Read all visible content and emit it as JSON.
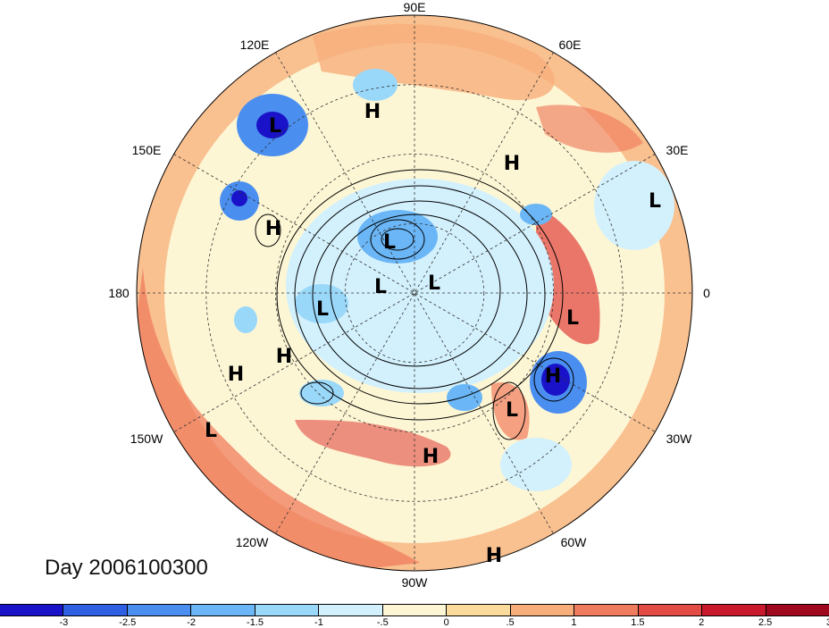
{
  "map": {
    "projection": "north-polar-stereographic",
    "longitude_labels": {
      "lon_90E": "90E",
      "lon_60E": "60E",
      "lon_30E": "30E",
      "lon_0": "0",
      "lon_30W": "30W",
      "lon_60W": "60W",
      "lon_90W": "90W",
      "lon_120W": "120W",
      "lon_150W": "150W",
      "lon_180": "180",
      "lon_150E": "150E",
      "lon_120E": "120E"
    },
    "pressure_centers": [
      {
        "id": "p1",
        "label": "L",
        "lon": 125,
        "kind": "low"
      },
      {
        "id": "p2",
        "label": "H",
        "lon": 100,
        "kind": "high"
      },
      {
        "id": "p3",
        "label": "H",
        "lon": 45,
        "kind": "high"
      },
      {
        "id": "p4",
        "label": "L",
        "lon": 20,
        "kind": "low"
      },
      {
        "id": "p5",
        "label": "L",
        "lon": 142,
        "kind": "low"
      },
      {
        "id": "p6",
        "label": "H",
        "lon": 160,
        "kind": "high"
      },
      {
        "id": "p7",
        "label": "L",
        "lon": 110,
        "kind": "low"
      },
      {
        "id": "p8",
        "label": "L",
        "lon": 120,
        "kind": "low"
      },
      {
        "id": "p9",
        "label": "L",
        "lon": 60,
        "kind": "low"
      },
      {
        "id": "p10",
        "label": "L",
        "lon": 180,
        "kind": "low"
      },
      {
        "id": "p11",
        "label": "H",
        "lon": -10,
        "kind": "high"
      },
      {
        "id": "p12",
        "label": "H",
        "lon": -140,
        "kind": "high"
      },
      {
        "id": "p13",
        "label": "H",
        "lon": -150,
        "kind": "high"
      },
      {
        "id": "p14",
        "label": "L",
        "lon": -155,
        "kind": "low"
      },
      {
        "id": "p15",
        "label": "L",
        "lon": -30,
        "kind": "low"
      },
      {
        "id": "p16",
        "label": "H",
        "lon": -45,
        "kind": "high"
      },
      {
        "id": "p17",
        "label": "H",
        "lon": -80,
        "kind": "high"
      },
      {
        "id": "p18",
        "label": "H",
        "lon": -70,
        "kind": "high"
      }
    ]
  },
  "date_label": "Day 2006100300",
  "colorbar": {
    "colors": [
      "#1a12c8",
      "#2f5fe3",
      "#4a8ef0",
      "#6ab6f6",
      "#9ad8fa",
      "#d3f1fd",
      "#fdf6d4",
      "#fbdc9c",
      "#f7ae7a",
      "#ef7c5e",
      "#e34b45",
      "#c81a2c",
      "#a0081e"
    ],
    "tick_labels": [
      "-3",
      "-2.5",
      "-2",
      "-1.5",
      "-1",
      "-.5",
      "0",
      ".5",
      "1",
      "1.5",
      "2",
      "2.5",
      "3"
    ],
    "tick_values": [
      -3,
      -2.5,
      -2,
      -1.5,
      -1,
      -0.5,
      0,
      0.5,
      1,
      1.5,
      2,
      2.5,
      3
    ]
  }
}
